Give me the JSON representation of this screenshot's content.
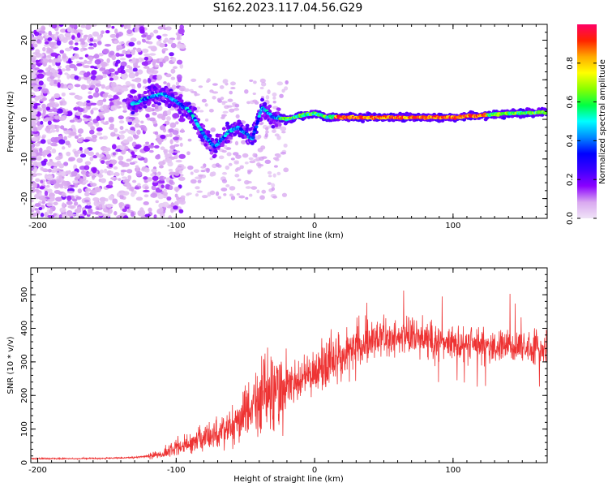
{
  "title": "S162.2023.117.04.56.G29",
  "chart_data": [
    {
      "type": "heatmap",
      "xlabel": "Height of straight line (km)",
      "ylabel": "Frequency (Hz)",
      "xlim": [
        -205,
        168
      ],
      "ylim": [
        -25,
        24
      ],
      "x_ticks": [
        -200,
        -100,
        0,
        100
      ],
      "y_ticks": [
        -20,
        -10,
        0,
        10,
        20
      ],
      "colorbar": {
        "label": "Normalized spectral amplitude",
        "range": [
          0,
          1
        ],
        "ticks": [
          0.0,
          0.2,
          0.4,
          0.6,
          0.8
        ],
        "tick_labels": [
          "0.0",
          "0.2",
          "0.4",
          "0.6",
          "0.8"
        ],
        "colors": [
          "#f0e4f7",
          "#d9a8f0",
          "#8a00ff",
          "#3b00ff",
          "#0000ff",
          "#0088ff",
          "#00ffff",
          "#00ff44",
          "#8aff00",
          "#ffff00",
          "#ffaa00",
          "#ff2200",
          "#ff0066"
        ]
      },
      "ridge": [
        {
          "x": -130,
          "y": 4.0
        },
        {
          "x": -120,
          "y": 5.5
        },
        {
          "x": -110,
          "y": 6.5
        },
        {
          "x": -100,
          "y": 4.5
        },
        {
          "x": -90,
          "y": 2.0
        },
        {
          "x": -80,
          "y": -4.0
        },
        {
          "x": -72,
          "y": -7.0
        },
        {
          "x": -62,
          "y": -3.0
        },
        {
          "x": -55,
          "y": -2.0
        },
        {
          "x": -45,
          "y": -5.0
        },
        {
          "x": -38,
          "y": 3.0
        },
        {
          "x": -30,
          "y": 0.5
        },
        {
          "x": -20,
          "y": 0.0
        },
        {
          "x": -10,
          "y": 1.0
        },
        {
          "x": 0,
          "y": 1.5
        },
        {
          "x": 10,
          "y": 0.5
        },
        {
          "x": 20,
          "y": 0.5
        },
        {
          "x": 40,
          "y": 0.5
        },
        {
          "x": 60,
          "y": 0.5
        },
        {
          "x": 80,
          "y": 0.5
        },
        {
          "x": 100,
          "y": 0.5
        },
        {
          "x": 120,
          "y": 1.0
        },
        {
          "x": 140,
          "y": 1.5
        },
        {
          "x": 168,
          "y": 1.8
        }
      ]
    },
    {
      "type": "line",
      "xlabel": "Height of straight line (km)",
      "ylabel": "SNR (10 * v/v)",
      "xlim": [
        -205,
        168
      ],
      "ylim": [
        0,
        580
      ],
      "x_ticks": [
        -200,
        -100,
        0,
        100
      ],
      "y_ticks": [
        0,
        100,
        200,
        300,
        400,
        500
      ],
      "line_color": "#ee3333",
      "envelope": [
        {
          "x": -205,
          "y": 12
        },
        {
          "x": -180,
          "y": 12
        },
        {
          "x": -150,
          "y": 13
        },
        {
          "x": -130,
          "y": 15
        },
        {
          "x": -110,
          "y": 25
        },
        {
          "x": -100,
          "y": 45
        },
        {
          "x": -90,
          "y": 60
        },
        {
          "x": -80,
          "y": 70
        },
        {
          "x": -70,
          "y": 90
        },
        {
          "x": -60,
          "y": 110
        },
        {
          "x": -50,
          "y": 150
        },
        {
          "x": -40,
          "y": 190
        },
        {
          "x": -35,
          "y": 210
        },
        {
          "x": -30,
          "y": 215
        },
        {
          "x": -25,
          "y": 220
        },
        {
          "x": -20,
          "y": 230
        },
        {
          "x": -10,
          "y": 245
        },
        {
          "x": 0,
          "y": 270
        },
        {
          "x": 10,
          "y": 300
        },
        {
          "x": 20,
          "y": 320
        },
        {
          "x": 30,
          "y": 340
        },
        {
          "x": 40,
          "y": 365
        },
        {
          "x": 50,
          "y": 370
        },
        {
          "x": 60,
          "y": 375
        },
        {
          "x": 80,
          "y": 370
        },
        {
          "x": 100,
          "y": 360
        },
        {
          "x": 120,
          "y": 350
        },
        {
          "x": 140,
          "y": 345
        },
        {
          "x": 168,
          "y": 340
        }
      ]
    }
  ]
}
